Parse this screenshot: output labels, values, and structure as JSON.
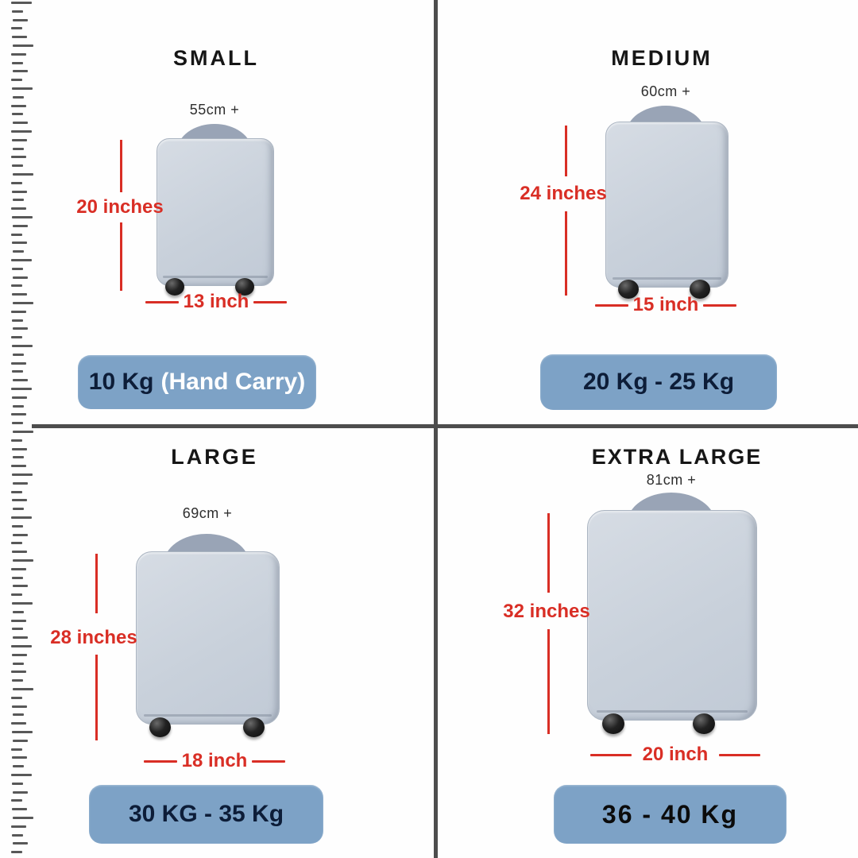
{
  "page": {
    "background": "#fefefe",
    "divider_color": "#4d4d4d",
    "accent_red": "#d92e25",
    "badge_blue": "#7da2c6",
    "navy_text": "#0d1d38",
    "suitcase_body": "#c9d1db",
    "suitcase_handle": "#99a4b6"
  },
  "quadrants": [
    {
      "id": "small",
      "title": "SMALL",
      "top_label": "55cm +",
      "height_label": "20 inches",
      "width_label": "13 inch",
      "badge": {
        "primary": "10 Kg",
        "secondary": "(Hand Carry)"
      }
    },
    {
      "id": "medium",
      "title": "MEDIUM",
      "top_label": "60cm +",
      "height_label": "24 inches",
      "width_label": "15 inch",
      "badge": {
        "primary": "20 Kg - 25 Kg"
      }
    },
    {
      "id": "large",
      "title": "LARGE",
      "top_label": "69cm +",
      "height_label": "28 inches",
      "width_label": "18 inch",
      "badge": {
        "primary": "30 KG - 35 Kg"
      }
    },
    {
      "id": "extra-large",
      "title": "EXTRA LARGE",
      "top_label": "81cm +",
      "height_label": "32 inches",
      "width_label": "20 inch",
      "badge": {
        "primary": "36 - 40 Kg"
      }
    }
  ]
}
